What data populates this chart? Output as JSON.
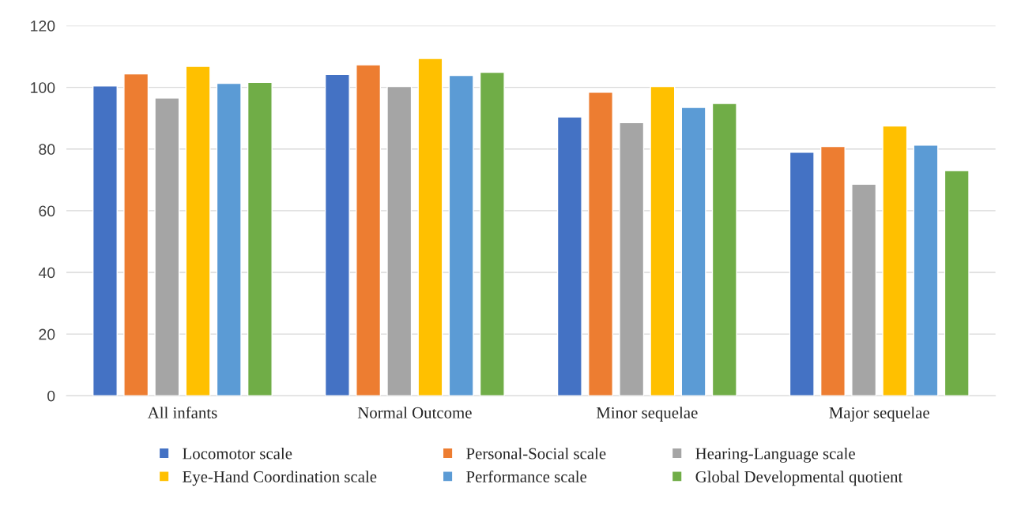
{
  "chart_data": {
    "type": "bar",
    "categories": [
      "All infants",
      "Normal Outcome",
      "Minor sequelae",
      "Major sequelae"
    ],
    "series": [
      {
        "name": "Locomotor scale",
        "color": "#4472c4",
        "values": [
          100.5,
          104.2,
          90.4,
          79.0
        ]
      },
      {
        "name": "Personal-Social scale",
        "color": "#ed7d31",
        "values": [
          104.4,
          107.3,
          98.4,
          80.8
        ]
      },
      {
        "name": "Hearing-Language scale",
        "color": "#a5a5a5",
        "values": [
          96.6,
          100.3,
          88.6,
          68.6
        ]
      },
      {
        "name": "Eye-Hand Coordination scale",
        "color": "#ffc000",
        "values": [
          106.8,
          109.4,
          100.3,
          87.5
        ]
      },
      {
        "name": "Performance scale",
        "color": "#5b9bd5",
        "values": [
          101.3,
          103.9,
          93.5,
          81.3
        ]
      },
      {
        "name": "Global Developmental quotient",
        "color": "#70ad47",
        "values": [
          101.6,
          104.9,
          94.8,
          73.0
        ]
      }
    ],
    "ylim": [
      0,
      120
    ],
    "yticks": [
      0,
      20,
      40,
      60,
      80,
      100,
      120
    ],
    "grid": "y",
    "legend": "bottom"
  }
}
